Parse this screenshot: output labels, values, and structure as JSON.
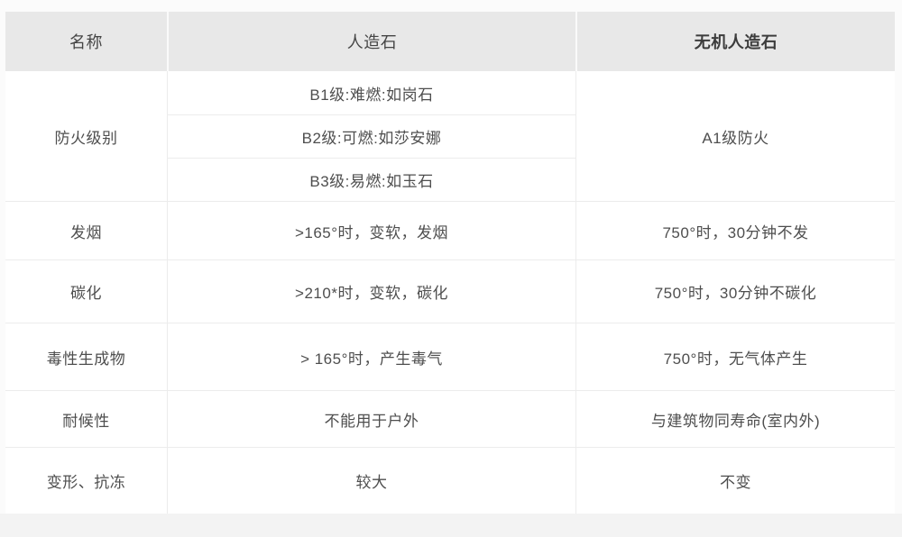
{
  "colors": {
    "header_bg": "#e8e8e8",
    "cell_border": "#ececec",
    "text": "#4e4e4e",
    "page_bg": "#fbfbfb",
    "bottom_strip_bg": "#f3f3f3"
  },
  "table": {
    "header": {
      "name": "名称",
      "artificial": "人造石",
      "inorganic": "无机人造石"
    },
    "fire_rating": {
      "name": "防火级别",
      "artificial_levels": [
        "B1级:难燃:如岗石",
        "B2级:可燃:如莎安娜",
        "B3级:易燃:如玉石"
      ],
      "inorganic": "A1级防火"
    },
    "rows": [
      {
        "name": "发烟",
        "artificial": ">165°时，变软，发烟",
        "inorganic": "750°时，30分钟不发"
      },
      {
        "name": "碳化",
        "artificial": ">210*时，变软，碳化",
        "inorganic": "750°时，30分钟不碳化"
      },
      {
        "name": "毒性生成物",
        "artificial": "> 165°时，产生毒气",
        "inorganic": "750°时，无气体产生"
      },
      {
        "name": "耐候性",
        "artificial": "不能用于户外",
        "inorganic": "与建筑物同寿命(室内外)"
      },
      {
        "name": "变形、抗冻",
        "artificial": "较大",
        "inorganic": "不变"
      }
    ]
  }
}
